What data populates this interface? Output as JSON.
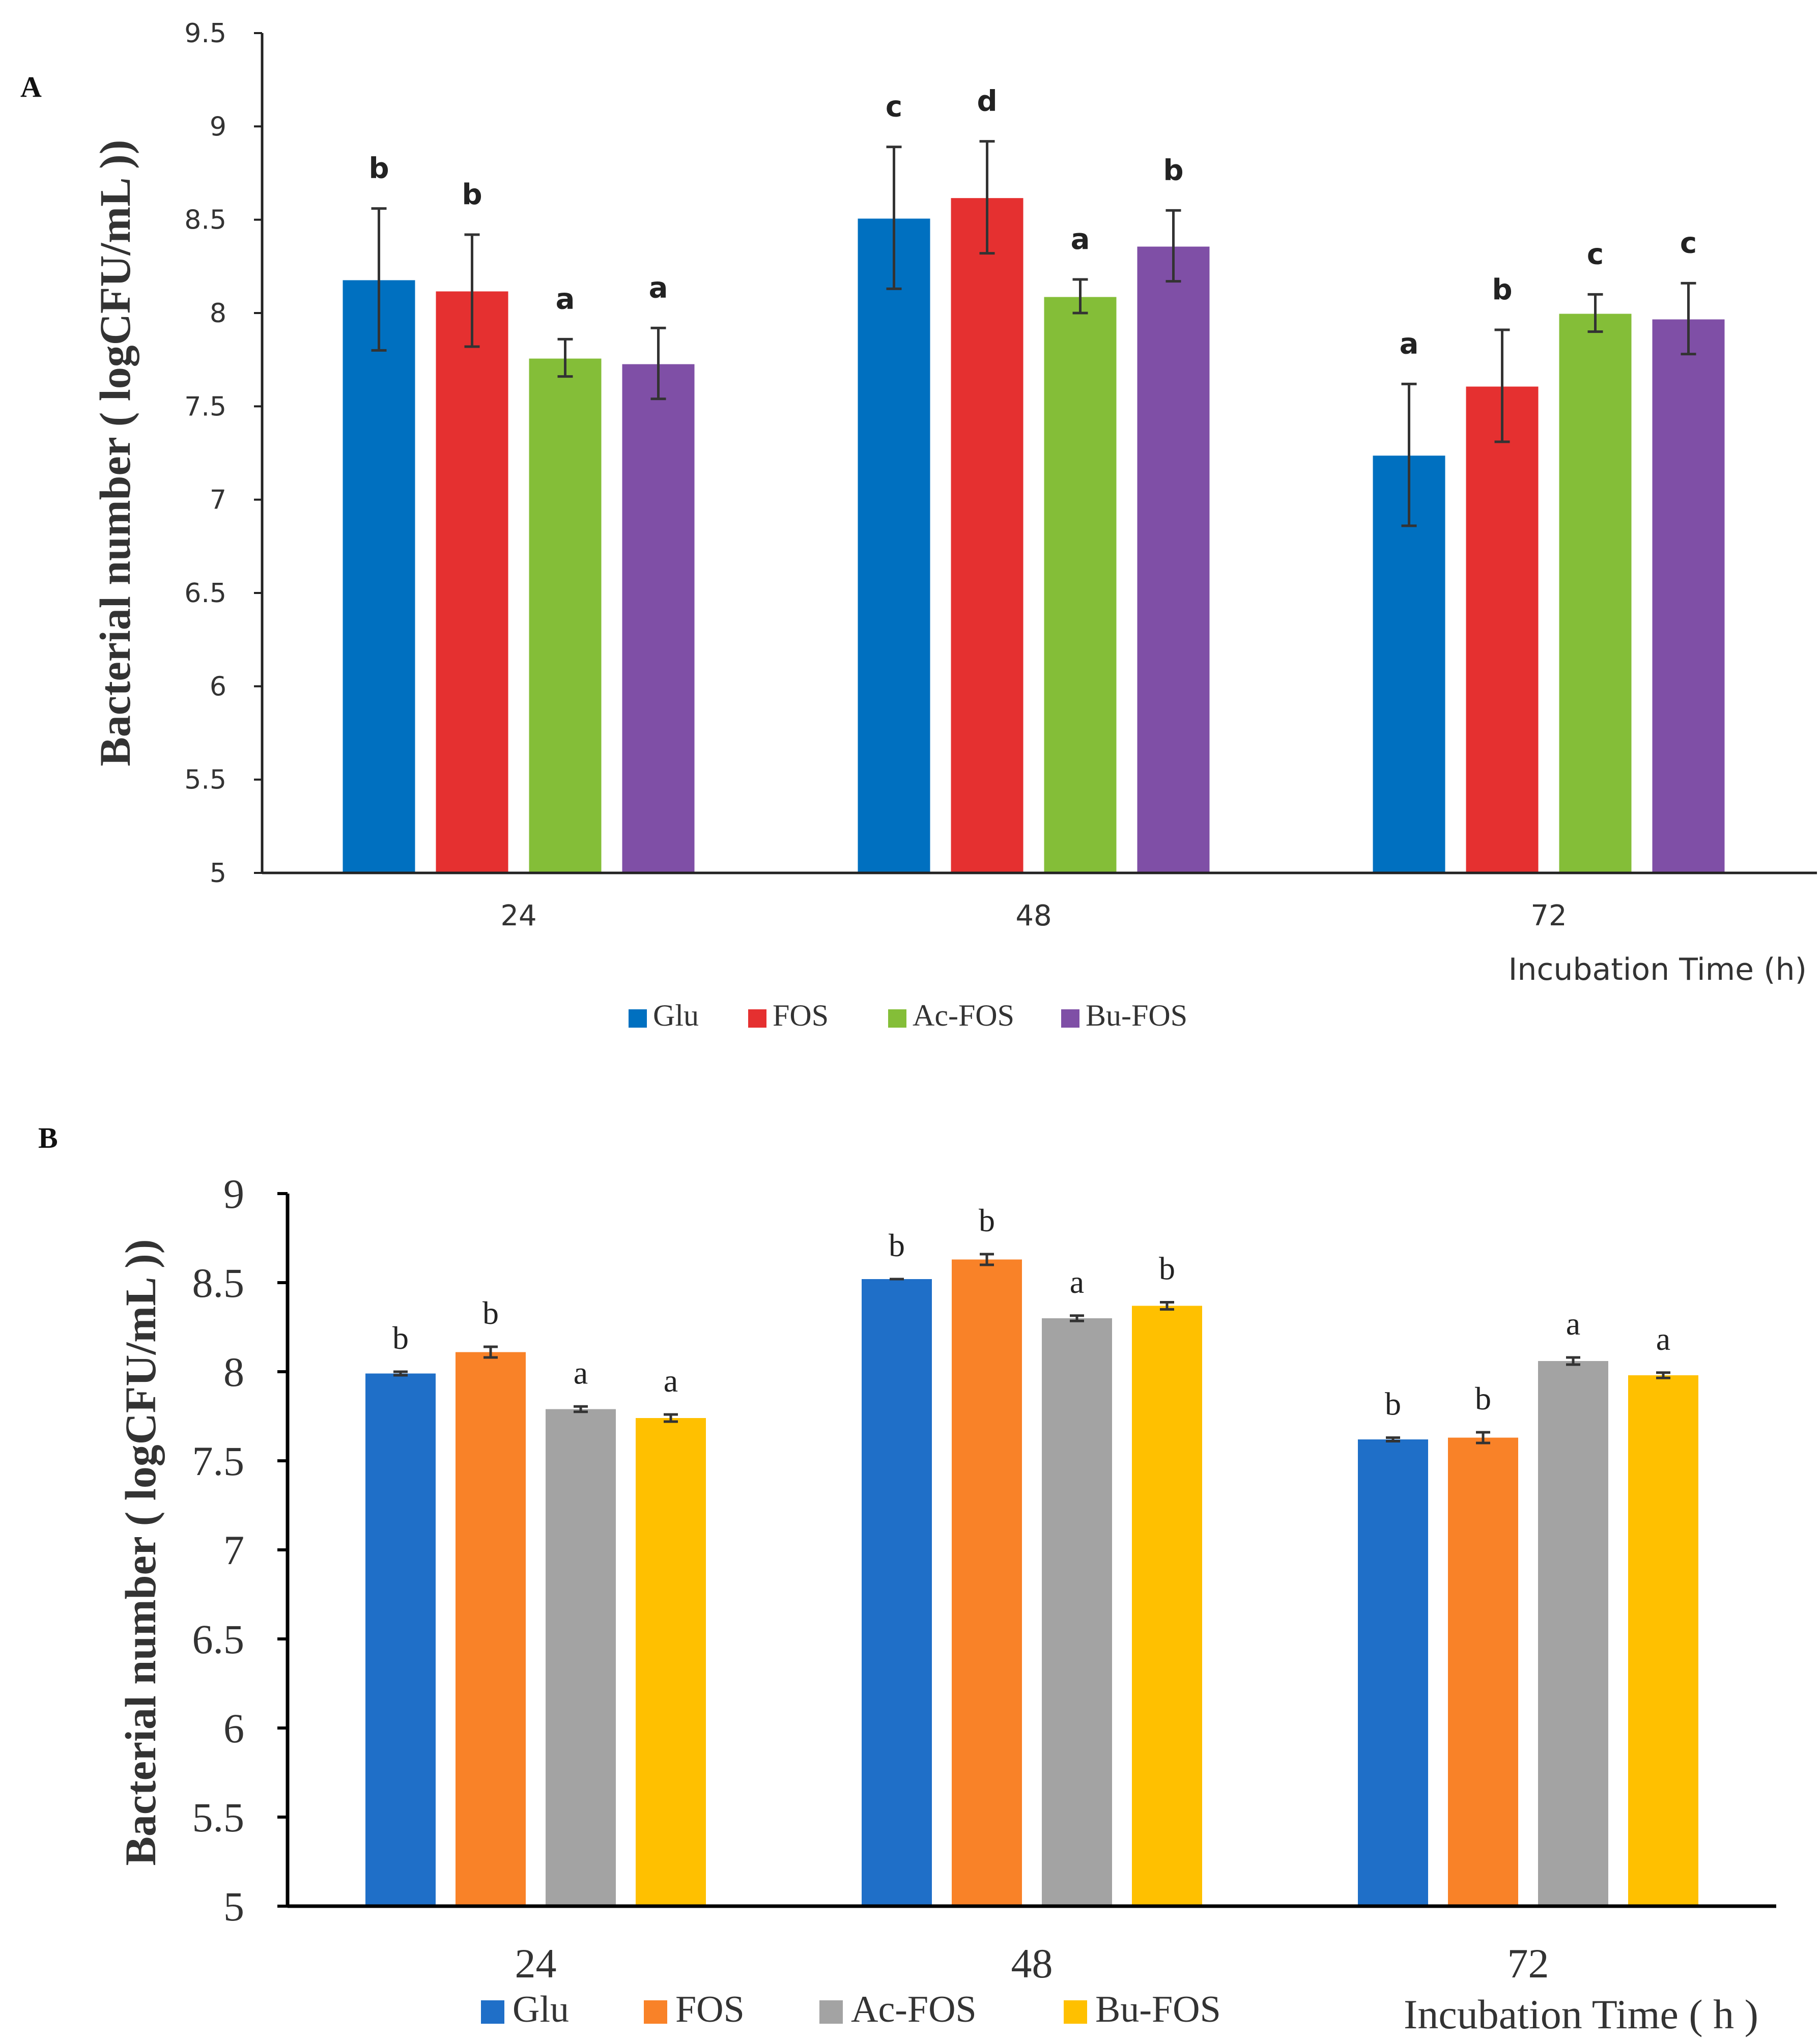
{
  "chart_data": [
    {
      "panel": "A",
      "type": "bar",
      "title": "",
      "xlabel": "Incubation Time (h)",
      "ylabel": "Bacterial number ( logCFU/mL ))",
      "ylim": [
        5,
        9.5
      ],
      "yticks": [
        "5",
        "5.5",
        "6",
        "6.5",
        "7",
        "7.5",
        "8",
        "8.5",
        "9",
        "9.5"
      ],
      "categories": [
        "24",
        "48",
        "72"
      ],
      "legend_position": "bottom",
      "series": [
        {
          "name": "Glu",
          "color": "#0070C0",
          "values": [
            8.18,
            8.51,
            7.24
          ],
          "errors": [
            0.38,
            0.38,
            0.38
          ],
          "labels": [
            "b",
            "c",
            "a"
          ]
        },
        {
          "name": "FOS",
          "color": "#E53030",
          "values": [
            8.12,
            8.62,
            7.61
          ],
          "errors": [
            0.3,
            0.3,
            0.3
          ],
          "labels": [
            "b",
            "d",
            "b"
          ]
        },
        {
          "name": "Ac-FOS",
          "color": "#84BE38",
          "values": [
            7.76,
            8.09,
            8.0
          ],
          "errors": [
            0.1,
            0.09,
            0.1
          ],
          "labels": [
            "a",
            "a",
            "c"
          ]
        },
        {
          "name": "Bu-FOS",
          "color": "#7F4FA6",
          "values": [
            7.73,
            8.36,
            7.97
          ],
          "errors": [
            0.19,
            0.19,
            0.19
          ],
          "labels": [
            "a",
            "b",
            "c"
          ]
        }
      ]
    },
    {
      "panel": "B",
      "type": "bar",
      "title": "",
      "xlabel": "Incubation Time ( h )",
      "ylabel": "Bacterial number ( logCFU/mL ))",
      "ylim": [
        5,
        9
      ],
      "yticks": [
        "5",
        "5.5",
        "6",
        "6.5",
        "7",
        "7.5",
        "8",
        "8.5",
        "9"
      ],
      "categories": [
        "24",
        "48",
        "72"
      ],
      "legend_position": "bottom",
      "series": [
        {
          "name": "Glu",
          "color": "#1F6FC8",
          "values": [
            7.99,
            8.52,
            7.62
          ],
          "errors": [
            0.01,
            0.0,
            0.01
          ],
          "labels": [
            "b",
            "b",
            "b"
          ]
        },
        {
          "name": "FOS",
          "color": "#F98228",
          "values": [
            8.11,
            8.63,
            7.63
          ],
          "errors": [
            0.03,
            0.03,
            0.03
          ],
          "labels": [
            "b",
            "b",
            "b"
          ]
        },
        {
          "name": "Ac-FOS",
          "color": "#A3A3A3",
          "values": [
            7.79,
            8.3,
            8.06
          ],
          "errors": [
            0.015,
            0.015,
            0.02
          ],
          "labels": [
            "a",
            "a",
            "a"
          ]
        },
        {
          "name": "Bu-FOS",
          "color": "#FFC000",
          "values": [
            7.74,
            8.37,
            7.98
          ],
          "errors": [
            0.02,
            0.02,
            0.015
          ],
          "labels": [
            "a",
            "b",
            "a"
          ]
        }
      ]
    }
  ],
  "panels": {
    "a": {
      "letter": "A"
    },
    "b": {
      "letter": "B"
    }
  }
}
